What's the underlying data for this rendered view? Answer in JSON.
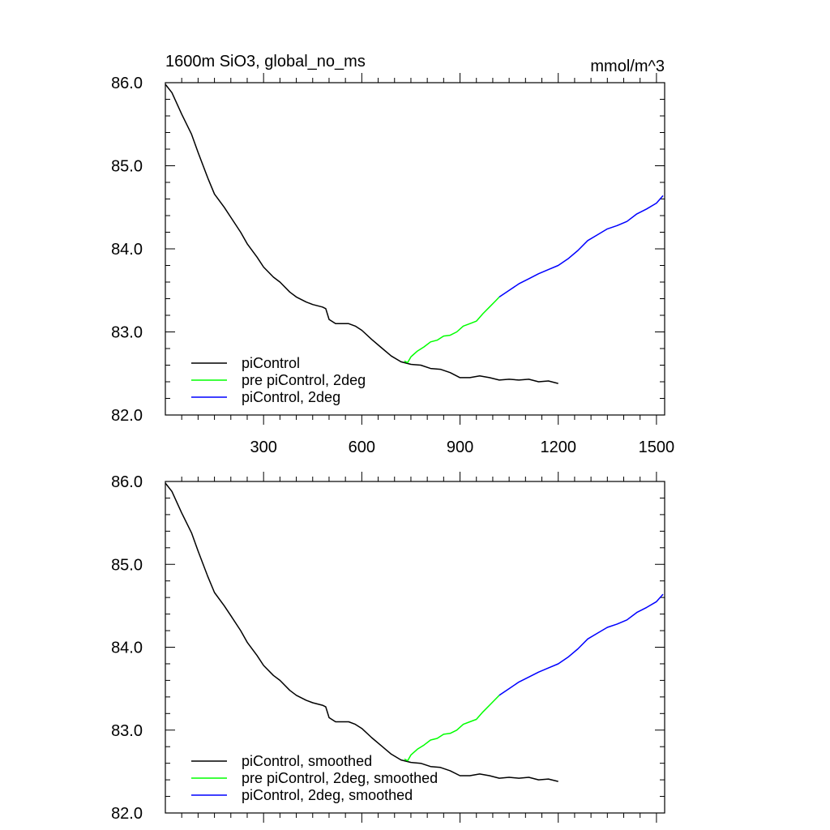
{
  "chart_data": [
    {
      "type": "line",
      "title": "1600m SiO3, global_no_ms",
      "units": "mmol/m^3",
      "xlim": [
        0,
        1525
      ],
      "ylim": [
        82.0,
        86.0
      ],
      "xticks": [
        300,
        600,
        900,
        1200,
        1500
      ],
      "xtick_labels": [
        "300",
        "600",
        "900",
        "1200",
        "1500"
      ],
      "yticks": [
        82.0,
        83.0,
        84.0,
        85.0,
        86.0
      ],
      "ytick_labels": [
        "82.0",
        "83.0",
        "84.0",
        "85.0",
        "86.0"
      ],
      "legend_position": "bottom-left",
      "grid": false,
      "series": [
        {
          "name": "piControl",
          "color": "#000000",
          "x": [
            0,
            20,
            50,
            80,
            100,
            130,
            150,
            180,
            200,
            230,
            250,
            280,
            300,
            330,
            350,
            380,
            400,
            430,
            450,
            480,
            490,
            500,
            520,
            540,
            560,
            580,
            600,
            630,
            660,
            690,
            720,
            750,
            780,
            810,
            840,
            870,
            900,
            930,
            960,
            990,
            1020,
            1050,
            1080,
            1110,
            1140,
            1170,
            1200
          ],
          "y": [
            85.98,
            85.88,
            85.62,
            85.38,
            85.16,
            84.85,
            84.66,
            84.5,
            84.38,
            84.2,
            84.06,
            83.9,
            83.78,
            83.66,
            83.6,
            83.48,
            83.42,
            83.36,
            83.33,
            83.3,
            83.28,
            83.15,
            83.1,
            83.1,
            83.1,
            83.07,
            83.02,
            82.91,
            82.81,
            82.71,
            82.64,
            82.61,
            82.6,
            82.56,
            82.55,
            82.51,
            82.45,
            82.45,
            82.47,
            82.45,
            82.42,
            82.43,
            82.42,
            82.43,
            82.4,
            82.41,
            82.38
          ]
        },
        {
          "name": "pre piControl, 2deg",
          "color": "#00ff00",
          "x": [
            730,
            740,
            750,
            770,
            790,
            810,
            830,
            850,
            870,
            890,
            910,
            930,
            950,
            970,
            990,
            1010,
            1020
          ],
          "y": [
            82.65,
            82.63,
            82.7,
            82.77,
            82.82,
            82.88,
            82.9,
            82.95,
            82.96,
            83.0,
            83.07,
            83.1,
            83.13,
            83.22,
            83.3,
            83.38,
            83.42
          ]
        },
        {
          "name": "piControl, 2deg",
          "color": "#0000ff",
          "x": [
            1020,
            1050,
            1080,
            1110,
            1140,
            1170,
            1200,
            1230,
            1260,
            1290,
            1320,
            1350,
            1380,
            1410,
            1440,
            1470,
            1500,
            1520
          ],
          "y": [
            83.42,
            83.5,
            83.58,
            83.64,
            83.7,
            83.75,
            83.8,
            83.88,
            83.98,
            84.1,
            84.17,
            84.24,
            84.28,
            84.33,
            84.42,
            84.48,
            84.55,
            84.64
          ]
        }
      ]
    },
    {
      "type": "line",
      "xlim": [
        0,
        1525
      ],
      "ylim": [
        82.0,
        86.0
      ],
      "xticks": [
        300,
        600,
        900,
        1200,
        1500
      ],
      "yticks": [
        82.0,
        83.0,
        84.0,
        85.0,
        86.0
      ],
      "ytick_labels": [
        "82.0",
        "83.0",
        "84.0",
        "85.0",
        "86.0"
      ],
      "legend_position": "bottom-left",
      "grid": false,
      "series": [
        {
          "name": "piControl, smoothed",
          "color": "#000000",
          "x": [
            0,
            20,
            50,
            80,
            100,
            130,
            150,
            180,
            200,
            230,
            250,
            280,
            300,
            330,
            350,
            380,
            400,
            430,
            450,
            480,
            490,
            500,
            520,
            540,
            560,
            580,
            600,
            630,
            660,
            690,
            720,
            750,
            780,
            810,
            840,
            870,
            900,
            930,
            960,
            990,
            1020,
            1050,
            1080,
            1110,
            1140,
            1170,
            1200
          ],
          "y": [
            85.98,
            85.88,
            85.62,
            85.38,
            85.16,
            84.85,
            84.66,
            84.5,
            84.38,
            84.2,
            84.06,
            83.9,
            83.78,
            83.66,
            83.6,
            83.48,
            83.42,
            83.36,
            83.33,
            83.3,
            83.28,
            83.15,
            83.1,
            83.1,
            83.1,
            83.07,
            83.02,
            82.91,
            82.81,
            82.71,
            82.64,
            82.61,
            82.6,
            82.56,
            82.55,
            82.51,
            82.45,
            82.45,
            82.47,
            82.45,
            82.42,
            82.43,
            82.42,
            82.43,
            82.4,
            82.41,
            82.38
          ]
        },
        {
          "name": "pre piControl, 2deg, smoothed",
          "color": "#00ff00",
          "x": [
            730,
            740,
            750,
            770,
            790,
            810,
            830,
            850,
            870,
            890,
            910,
            930,
            950,
            970,
            990,
            1010,
            1020
          ],
          "y": [
            82.65,
            82.63,
            82.7,
            82.77,
            82.82,
            82.88,
            82.9,
            82.95,
            82.96,
            83.0,
            83.07,
            83.1,
            83.13,
            83.22,
            83.3,
            83.38,
            83.42
          ]
        },
        {
          "name": "piControl, 2deg, smoothed",
          "color": "#0000ff",
          "x": [
            1020,
            1050,
            1080,
            1110,
            1140,
            1170,
            1200,
            1230,
            1260,
            1290,
            1320,
            1350,
            1380,
            1410,
            1440,
            1470,
            1500,
            1520
          ],
          "y": [
            83.42,
            83.5,
            83.58,
            83.64,
            83.7,
            83.75,
            83.8,
            83.88,
            83.98,
            84.1,
            84.17,
            84.24,
            84.28,
            84.33,
            84.42,
            84.48,
            84.55,
            84.64
          ]
        }
      ]
    }
  ]
}
